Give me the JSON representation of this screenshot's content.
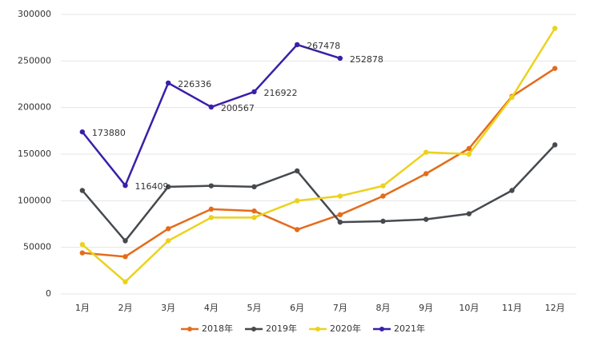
{
  "chart_data": {
    "type": "line",
    "categories": [
      "1月",
      "2月",
      "3月",
      "4月",
      "5月",
      "6月",
      "7月",
      "8月",
      "9月",
      "10月",
      "11月",
      "12月"
    ],
    "series": [
      {
        "name": "2018年",
        "color": "#e36c1c",
        "values": [
          44000,
          40000,
          70000,
          91000,
          89000,
          69000,
          85000,
          105000,
          129000,
          156000,
          212000,
          242000
        ]
      },
      {
        "name": "2019年",
        "color": "#464a4e",
        "values": [
          111000,
          57000,
          115000,
          116000,
          115000,
          132000,
          77000,
          78000,
          80000,
          86000,
          111000,
          160000
        ]
      },
      {
        "name": "2020年",
        "color": "#ecd21c",
        "values": [
          53000,
          13000,
          57000,
          82000,
          82000,
          100000,
          105000,
          116000,
          152000,
          150000,
          211000,
          285000
        ]
      },
      {
        "name": "2021年",
        "color": "#3a1fa8",
        "show_labels": true,
        "values": [
          173880,
          116409,
          226336,
          200567,
          216922,
          267478,
          252878,
          null,
          null,
          null,
          null,
          null
        ]
      }
    ],
    "ylim": [
      0,
      300000
    ],
    "yticks": [
      0,
      50000,
      100000,
      150000,
      200000,
      250000,
      300000
    ],
    "grid": true,
    "legend": "bottom"
  }
}
